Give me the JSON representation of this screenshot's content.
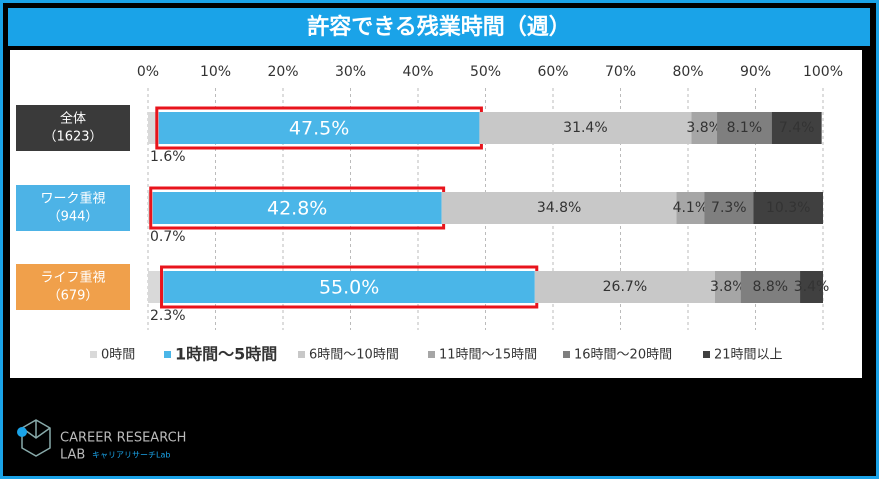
{
  "chart_data": {
    "type": "stacked-bar-horizontal",
    "title": "許容できる残業時間（週）",
    "categories": [
      "全体",
      "ワーク重視",
      "ライフ重視"
    ],
    "category_sublabels": [
      "（1623）",
      "（944）",
      "（679）"
    ],
    "category_colors": [
      "#3a3a3a",
      "#4db3e6",
      "#f0a04b"
    ],
    "xlim": [
      0,
      100
    ],
    "xticks": [
      {
        "value": 0,
        "label": "0%"
      },
      {
        "value": 10,
        "label": "10%"
      },
      {
        "value": 20,
        "label": "20%"
      },
      {
        "value": 30,
        "label": "30%"
      },
      {
        "value": 40,
        "label": "40%"
      },
      {
        "value": 50,
        "label": "50%"
      },
      {
        "value": 60,
        "label": "60%"
      },
      {
        "value": 70,
        "label": "70%"
      },
      {
        "value": 80,
        "label": "80%"
      },
      {
        "value": 90,
        "label": "90%"
      },
      {
        "value": 100,
        "label": "100%"
      }
    ],
    "grid": true,
    "series": [
      {
        "name": "0時間",
        "color": "#d9d9d9",
        "values": [
          1.6,
          0.7,
          2.3
        ],
        "value_labels": [
          "1.6%",
          "0.7%",
          "2.3%"
        ]
      },
      {
        "name": "1時間～5時間",
        "color": "#4ab6e8",
        "highlight": true,
        "values": [
          47.5,
          42.8,
          55.0
        ],
        "value_labels": [
          "47.5%",
          "42.8%",
          "55.0%"
        ]
      },
      {
        "name": "6時間～10時間",
        "color": "#c8c8c8",
        "values": [
          31.4,
          34.8,
          26.7
        ],
        "value_labels": [
          "31.4%",
          "34.8%",
          "26.7%"
        ]
      },
      {
        "name": "11時間～15時間",
        "color": "#a6a6a6",
        "values": [
          3.8,
          4.1,
          3.8
        ],
        "value_labels": [
          "3.8%",
          "4.1%",
          "3.8%"
        ]
      },
      {
        "name": "16時間～20時間",
        "color": "#7f7f7f",
        "values": [
          8.1,
          7.3,
          8.8
        ],
        "value_labels": [
          "8.1%",
          "7.3%",
          "8.8%"
        ]
      },
      {
        "name": "21時間以上",
        "color": "#404040",
        "values": [
          7.4,
          10.3,
          3.4
        ],
        "value_labels": [
          "7.4%",
          "10.3%",
          "3.4%"
        ]
      }
    ]
  },
  "logo": {
    "line1": "CAREER RESEARCH",
    "line2": "LAB",
    "sub": "キャリアリサーチLab"
  }
}
